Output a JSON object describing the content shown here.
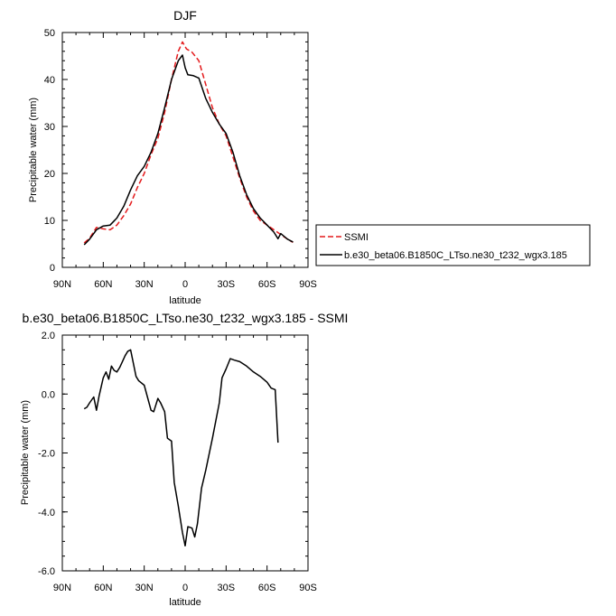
{
  "chart_data": [
    {
      "type": "line",
      "title": "DJF",
      "xlabel": "latitude",
      "ylabel": "Precipitable water (mm)",
      "xlim": [
        90,
        -90
      ],
      "ylim": [
        0,
        50
      ],
      "x_ticks": [
        90,
        60,
        30,
        0,
        -30,
        -60,
        -90
      ],
      "x_tick_labels": [
        "90N",
        "60N",
        "30N",
        "0",
        "30S",
        "60S",
        "90S"
      ],
      "y_ticks": [
        0,
        10,
        20,
        30,
        40,
        50
      ],
      "y_tick_labels": [
        "0",
        "10",
        "20",
        "30",
        "40",
        "50"
      ],
      "legend_position": "right",
      "series": [
        {
          "name": "SSMI",
          "color": "#e41a1c",
          "dash": "dashed",
          "x": [
            74,
            70,
            65,
            60,
            55,
            50,
            45,
            40,
            35,
            30,
            25,
            20,
            15,
            10,
            5,
            2,
            -1,
            -5,
            -10,
            -15,
            -20,
            -25,
            -30,
            -35,
            -40,
            -45,
            -50,
            -55,
            -60,
            -65,
            -70,
            -75,
            -79
          ],
          "y": [
            5.2,
            6.2,
            8.5,
            8.2,
            8.0,
            9.0,
            11.0,
            13.5,
            17.0,
            20.0,
            24.0,
            27.5,
            33.0,
            40.0,
            46.0,
            48.0,
            46.5,
            45.8,
            44.0,
            39.0,
            34.0,
            30.5,
            28.0,
            23.5,
            19.0,
            15.0,
            12.0,
            10.0,
            9.0,
            8.0,
            7.0,
            6.0,
            5.3
          ]
        },
        {
          "name": "b.e30_beta06.B1850C_LTso.ne30_t232_wgx3.185",
          "color": "#000000",
          "dash": "solid",
          "x": [
            74,
            70,
            65,
            60,
            55,
            50,
            45,
            40,
            35,
            30,
            25,
            20,
            15,
            10,
            5,
            2,
            0,
            -2,
            -6,
            -10,
            -15,
            -20,
            -25,
            -30,
            -35,
            -40,
            -45,
            -50,
            -55,
            -60,
            -65,
            -68,
            -70,
            -75,
            -79
          ],
          "y": [
            4.8,
            6.0,
            8.0,
            8.8,
            9.0,
            10.5,
            13.0,
            16.5,
            19.5,
            21.5,
            24.5,
            28.5,
            34.0,
            40.0,
            44.0,
            45.2,
            42.5,
            41.0,
            40.8,
            40.3,
            36.0,
            33.0,
            30.5,
            28.5,
            24.5,
            19.5,
            15.5,
            12.5,
            10.5,
            9.0,
            7.5,
            6.1,
            7.2,
            6.0,
            5.4
          ]
        }
      ]
    },
    {
      "type": "line",
      "title": "b.e30_beta06.B1850C_LTso.ne30_t232_wgx3.185 - SSMI",
      "xlabel": "latitude",
      "ylabel": "Precipitable water (mm)",
      "xlim": [
        90,
        -90
      ],
      "ylim": [
        -6,
        2
      ],
      "x_ticks": [
        90,
        60,
        30,
        0,
        -30,
        -60,
        -90
      ],
      "x_tick_labels": [
        "90N",
        "60N",
        "30N",
        "0",
        "30S",
        "60S",
        "90S"
      ],
      "y_ticks": [
        -6,
        -4,
        -2,
        0,
        2
      ],
      "y_tick_labels": [
        "-6.0",
        "-4.0",
        "-2.0",
        "0.0",
        "2.0"
      ],
      "series": [
        {
          "color": "#000000",
          "dash": "solid",
          "x": [
            74,
            72,
            70,
            67,
            65,
            63,
            60,
            58,
            56,
            54,
            52,
            50,
            48,
            46,
            44,
            42,
            40,
            38,
            36,
            34,
            30,
            25,
            23,
            20,
            18,
            15,
            13,
            10,
            8,
            5,
            2,
            0,
            -2,
            -5,
            -7,
            -9,
            -12,
            -15,
            -20,
            -25,
            -27,
            -30,
            -33,
            -36,
            -40,
            -45,
            -50,
            -55,
            -60,
            -63,
            -66,
            -68
          ],
          "y": [
            -0.5,
            -0.45,
            -0.3,
            -0.1,
            -0.55,
            -0.05,
            0.55,
            0.75,
            0.5,
            0.95,
            0.8,
            0.75,
            0.9,
            1.1,
            1.3,
            1.45,
            1.5,
            1.05,
            0.6,
            0.45,
            0.3,
            -0.55,
            -0.6,
            -0.15,
            -0.3,
            -0.6,
            -1.5,
            -1.6,
            -3.0,
            -3.8,
            -4.7,
            -5.15,
            -4.5,
            -4.55,
            -4.85,
            -4.4,
            -3.2,
            -2.6,
            -1.5,
            -0.3,
            0.55,
            0.85,
            1.2,
            1.15,
            1.1,
            0.95,
            0.75,
            0.6,
            0.4,
            0.2,
            0.15,
            -1.65
          ]
        }
      ]
    }
  ]
}
